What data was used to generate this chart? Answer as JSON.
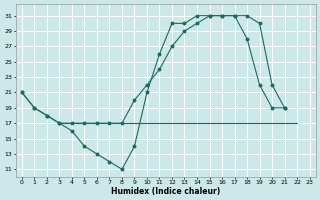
{
  "xlabel": "Humidex (Indice chaleur)",
  "background_color": "#cce8e8",
  "grid_color": "#ffffff",
  "line_color": "#1a6b60",
  "xlim": [
    -0.5,
    23.5
  ],
  "ylim": [
    10,
    32.5
  ],
  "yticks": [
    11,
    13,
    15,
    17,
    19,
    21,
    23,
    25,
    27,
    29,
    31
  ],
  "xticks": [
    0,
    1,
    2,
    3,
    4,
    5,
    6,
    7,
    8,
    9,
    10,
    11,
    12,
    13,
    14,
    15,
    16,
    17,
    18,
    19,
    20,
    21,
    22,
    23
  ],
  "line1_x": [
    0,
    1,
    2,
    3,
    4,
    5,
    6,
    7,
    8,
    9,
    10,
    11,
    12,
    13,
    14,
    15,
    16,
    17,
    18,
    19,
    20,
    21
  ],
  "line1_y": [
    21,
    19,
    18,
    17,
    16,
    14,
    13,
    12,
    11,
    14,
    21,
    26,
    30,
    30,
    31,
    31,
    31,
    31,
    31,
    30,
    22,
    19
  ],
  "line2_x": [
    3,
    22
  ],
  "line2_y": [
    17,
    17
  ],
  "line3_x": [
    0,
    1,
    2,
    3,
    4,
    5,
    6,
    7,
    8,
    9,
    10,
    11,
    12,
    13,
    14,
    15,
    16,
    17,
    18,
    19,
    20,
    21
  ],
  "line3_y": [
    21,
    19,
    18,
    17,
    17,
    17,
    17,
    17,
    17,
    20,
    22,
    24,
    27,
    29,
    30,
    31,
    31,
    31,
    28,
    22,
    19,
    19
  ],
  "xlabel_fontsize": 5.5,
  "tick_fontsize": 4.5,
  "lw": 0.8,
  "ms": 1.8
}
